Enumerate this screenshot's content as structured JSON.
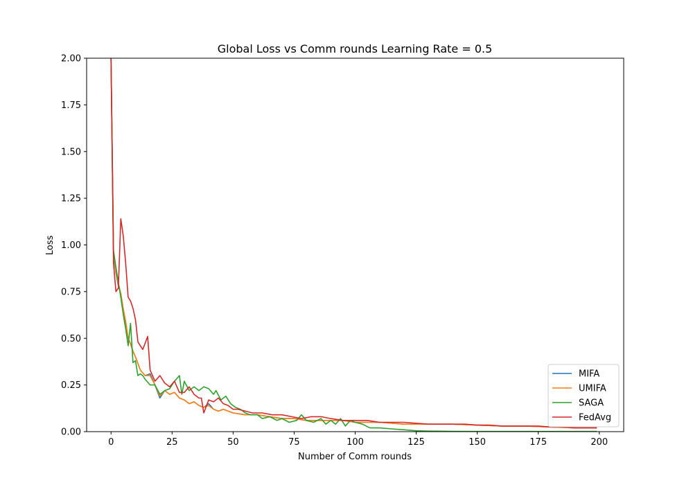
{
  "chart_data": {
    "type": "line",
    "title": "Global Loss vs Comm rounds Learning Rate = 0.5",
    "xlabel": "Number of Comm rounds",
    "ylabel": "Loss",
    "xlim": [
      -10,
      210
    ],
    "ylim": [
      0,
      2.0
    ],
    "xticks": [
      "0",
      "25",
      "50",
      "75",
      "100",
      "125",
      "150",
      "175",
      "200"
    ],
    "yticks": [
      "0.00",
      "0.25",
      "0.50",
      "0.75",
      "1.00",
      "1.25",
      "1.50",
      "1.75",
      "2.00"
    ],
    "grid": false,
    "legend_position": "lower-right",
    "series": [
      {
        "name": "MIFA",
        "color": "#1f77b4",
        "points": [
          [
            0,
            2.0
          ],
          [
            1,
            0.95
          ],
          [
            2,
            0.85
          ],
          [
            3,
            0.78
          ],
          [
            4,
            0.74
          ],
          [
            5,
            0.65
          ],
          [
            6,
            0.58
          ],
          [
            7,
            0.5
          ],
          [
            8,
            0.47
          ],
          [
            9,
            0.43
          ],
          [
            10,
            0.4
          ],
          [
            12,
            0.33
          ],
          [
            14,
            0.3
          ],
          [
            16,
            0.31
          ],
          [
            18,
            0.25
          ],
          [
            20,
            0.18
          ],
          [
            22,
            0.22
          ],
          [
            24,
            0.2
          ],
          [
            26,
            0.21
          ],
          [
            28,
            0.18
          ],
          [
            30,
            0.17
          ],
          [
            32,
            0.15
          ],
          [
            34,
            0.16
          ],
          [
            36,
            0.14
          ],
          [
            38,
            0.13
          ],
          [
            40,
            0.15
          ],
          [
            42,
            0.12
          ],
          [
            44,
            0.11
          ],
          [
            46,
            0.12
          ],
          [
            48,
            0.11
          ],
          [
            50,
            0.1
          ],
          [
            55,
            0.09
          ],
          [
            60,
            0.09
          ],
          [
            65,
            0.08
          ],
          [
            70,
            0.07
          ],
          [
            75,
            0.07
          ],
          [
            80,
            0.06
          ],
          [
            85,
            0.06
          ],
          [
            90,
            0.06
          ],
          [
            95,
            0.06
          ],
          [
            100,
            0.05
          ],
          [
            110,
            0.05
          ],
          [
            120,
            0.04
          ],
          [
            130,
            0.04
          ],
          [
            140,
            0.04
          ],
          [
            150,
            0.035
          ],
          [
            160,
            0.03
          ],
          [
            170,
            0.03
          ],
          [
            180,
            0.025
          ],
          [
            190,
            0.02
          ],
          [
            199,
            0.02
          ]
        ]
      },
      {
        "name": "UMIFA",
        "color": "#ff7f0e",
        "points": [
          [
            0,
            2.0
          ],
          [
            1,
            0.96
          ],
          [
            2,
            0.86
          ],
          [
            3,
            0.79
          ],
          [
            4,
            0.74
          ],
          [
            5,
            0.66
          ],
          [
            6,
            0.59
          ],
          [
            7,
            0.5
          ],
          [
            8,
            0.47
          ],
          [
            9,
            0.43
          ],
          [
            10,
            0.4
          ],
          [
            12,
            0.33
          ],
          [
            14,
            0.3
          ],
          [
            16,
            0.3
          ],
          [
            18,
            0.25
          ],
          [
            20,
            0.19
          ],
          [
            22,
            0.22
          ],
          [
            24,
            0.2
          ],
          [
            26,
            0.21
          ],
          [
            28,
            0.18
          ],
          [
            30,
            0.17
          ],
          [
            32,
            0.15
          ],
          [
            34,
            0.16
          ],
          [
            36,
            0.14
          ],
          [
            38,
            0.13
          ],
          [
            40,
            0.14
          ],
          [
            42,
            0.12
          ],
          [
            44,
            0.11
          ],
          [
            46,
            0.12
          ],
          [
            48,
            0.11
          ],
          [
            50,
            0.1
          ],
          [
            55,
            0.09
          ],
          [
            60,
            0.09
          ],
          [
            65,
            0.08
          ],
          [
            70,
            0.07
          ],
          [
            75,
            0.07
          ],
          [
            80,
            0.06
          ],
          [
            85,
            0.06
          ],
          [
            90,
            0.06
          ],
          [
            95,
            0.06
          ],
          [
            100,
            0.05
          ],
          [
            110,
            0.05
          ],
          [
            120,
            0.04
          ],
          [
            130,
            0.04
          ],
          [
            140,
            0.04
          ],
          [
            150,
            0.035
          ],
          [
            160,
            0.03
          ],
          [
            170,
            0.03
          ],
          [
            180,
            0.025
          ],
          [
            190,
            0.02
          ],
          [
            199,
            0.02
          ]
        ]
      },
      {
        "name": "SAGA",
        "color": "#2ca02c",
        "points": [
          [
            0,
            2.0
          ],
          [
            1,
            0.97
          ],
          [
            2,
            0.88
          ],
          [
            3,
            0.8
          ],
          [
            4,
            0.72
          ],
          [
            5,
            0.63
          ],
          [
            6,
            0.55
          ],
          [
            7,
            0.46
          ],
          [
            8,
            0.58
          ],
          [
            9,
            0.37
          ],
          [
            10,
            0.38
          ],
          [
            11,
            0.3
          ],
          [
            12,
            0.31
          ],
          [
            13,
            0.3
          ],
          [
            14,
            0.28
          ],
          [
            16,
            0.25
          ],
          [
            18,
            0.25
          ],
          [
            20,
            0.2
          ],
          [
            22,
            0.22
          ],
          [
            24,
            0.23
          ],
          [
            26,
            0.27
          ],
          [
            28,
            0.3
          ],
          [
            29,
            0.2
          ],
          [
            30,
            0.27
          ],
          [
            32,
            0.22
          ],
          [
            34,
            0.24
          ],
          [
            36,
            0.22
          ],
          [
            38,
            0.24
          ],
          [
            40,
            0.23
          ],
          [
            42,
            0.2
          ],
          [
            43,
            0.22
          ],
          [
            45,
            0.17
          ],
          [
            47,
            0.19
          ],
          [
            49,
            0.15
          ],
          [
            51,
            0.13
          ],
          [
            53,
            0.12
          ],
          [
            55,
            0.1
          ],
          [
            57,
            0.09
          ],
          [
            60,
            0.09
          ],
          [
            62,
            0.07
          ],
          [
            65,
            0.08
          ],
          [
            68,
            0.06
          ],
          [
            70,
            0.07
          ],
          [
            73,
            0.05
          ],
          [
            76,
            0.06
          ],
          [
            78,
            0.09
          ],
          [
            80,
            0.06
          ],
          [
            83,
            0.05
          ],
          [
            86,
            0.07
          ],
          [
            88,
            0.04
          ],
          [
            90,
            0.06
          ],
          [
            92,
            0.04
          ],
          [
            94,
            0.07
          ],
          [
            96,
            0.03
          ],
          [
            98,
            0.06
          ],
          [
            100,
            0.05
          ],
          [
            103,
            0.04
          ],
          [
            106,
            0.02
          ],
          [
            110,
            0.02
          ],
          [
            115,
            0.015
          ],
          [
            120,
            0.01
          ],
          [
            125,
            0.005
          ],
          [
            130,
            0.003
          ],
          [
            140,
            0.002
          ],
          [
            150,
            0.001
          ],
          [
            170,
            0.001
          ],
          [
            199,
            0.001
          ]
        ]
      },
      {
        "name": "FedAvg",
        "color": "#d62728",
        "points": [
          [
            0,
            2.0
          ],
          [
            1,
            0.9
          ],
          [
            2,
            0.75
          ],
          [
            3,
            0.77
          ],
          [
            4,
            1.14
          ],
          [
            5,
            1.05
          ],
          [
            6,
            0.9
          ],
          [
            7,
            0.72
          ],
          [
            8,
            0.7
          ],
          [
            9,
            0.66
          ],
          [
            10,
            0.6
          ],
          [
            11,
            0.48
          ],
          [
            13,
            0.44
          ],
          [
            15,
            0.51
          ],
          [
            16,
            0.33
          ],
          [
            18,
            0.27
          ],
          [
            20,
            0.3
          ],
          [
            21,
            0.28
          ],
          [
            22,
            0.26
          ],
          [
            24,
            0.24
          ],
          [
            26,
            0.27
          ],
          [
            28,
            0.21
          ],
          [
            30,
            0.21
          ],
          [
            32,
            0.24
          ],
          [
            34,
            0.2
          ],
          [
            36,
            0.18
          ],
          [
            37,
            0.18
          ],
          [
            38,
            0.1
          ],
          [
            40,
            0.17
          ],
          [
            42,
            0.16
          ],
          [
            44,
            0.18
          ],
          [
            46,
            0.15
          ],
          [
            48,
            0.14
          ],
          [
            50,
            0.12
          ],
          [
            52,
            0.12
          ],
          [
            55,
            0.11
          ],
          [
            58,
            0.1
          ],
          [
            62,
            0.1
          ],
          [
            66,
            0.09
          ],
          [
            70,
            0.09
          ],
          [
            74,
            0.08
          ],
          [
            78,
            0.07
          ],
          [
            82,
            0.08
          ],
          [
            86,
            0.08
          ],
          [
            90,
            0.07
          ],
          [
            95,
            0.06
          ],
          [
            100,
            0.06
          ],
          [
            105,
            0.06
          ],
          [
            110,
            0.05
          ],
          [
            115,
            0.05
          ],
          [
            120,
            0.05
          ],
          [
            125,
            0.045
          ],
          [
            130,
            0.04
          ],
          [
            135,
            0.04
          ],
          [
            140,
            0.04
          ],
          [
            145,
            0.04
          ],
          [
            150,
            0.035
          ],
          [
            155,
            0.035
          ],
          [
            160,
            0.03
          ],
          [
            165,
            0.03
          ],
          [
            170,
            0.03
          ],
          [
            175,
            0.03
          ],
          [
            180,
            0.025
          ],
          [
            185,
            0.025
          ],
          [
            190,
            0.02
          ],
          [
            199,
            0.02
          ]
        ]
      }
    ]
  }
}
